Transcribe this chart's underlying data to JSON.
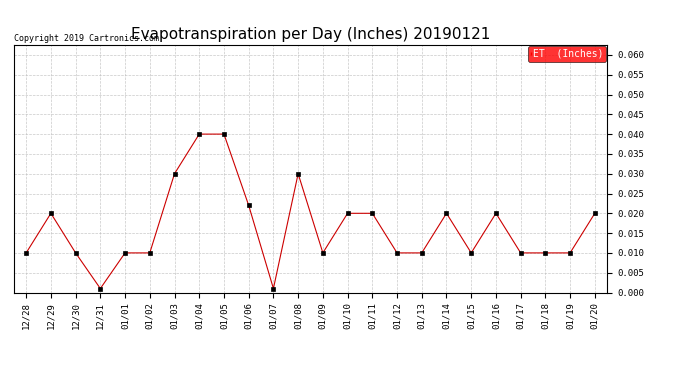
{
  "title": "Evapotranspiration per Day (Inches) 20190121",
  "copyright": "Copyright 2019 Cartronics.com",
  "legend_label": "ET  (Inches)",
  "legend_bg": "#ff0000",
  "legend_text_color": "#ffffff",
  "x_labels": [
    "12/28",
    "12/29",
    "12/30",
    "12/31",
    "01/01",
    "01/02",
    "01/03",
    "01/04",
    "01/05",
    "01/06",
    "01/07",
    "01/08",
    "01/09",
    "01/10",
    "01/11",
    "01/12",
    "01/13",
    "01/14",
    "01/15",
    "01/16",
    "01/17",
    "01/18",
    "01/19",
    "01/20"
  ],
  "y_values": [
    0.01,
    0.02,
    0.01,
    0.001,
    0.01,
    0.01,
    0.03,
    0.04,
    0.04,
    0.022,
    0.001,
    0.03,
    0.01,
    0.02,
    0.02,
    0.01,
    0.01,
    0.02,
    0.01,
    0.02,
    0.01,
    0.01,
    0.01,
    0.02
  ],
  "line_color": "#cc0000",
  "marker": "s",
  "marker_size": 2.5,
  "ylim": [
    0.0,
    0.0625
  ],
  "yticks": [
    0.0,
    0.005,
    0.01,
    0.015,
    0.02,
    0.025,
    0.03,
    0.035,
    0.04,
    0.045,
    0.05,
    0.055,
    0.06
  ],
  "bg_color": "#ffffff",
  "grid_color": "#bbbbbb",
  "title_fontsize": 11,
  "copyright_fontsize": 6,
  "tick_fontsize": 6.5,
  "legend_fontsize": 7
}
